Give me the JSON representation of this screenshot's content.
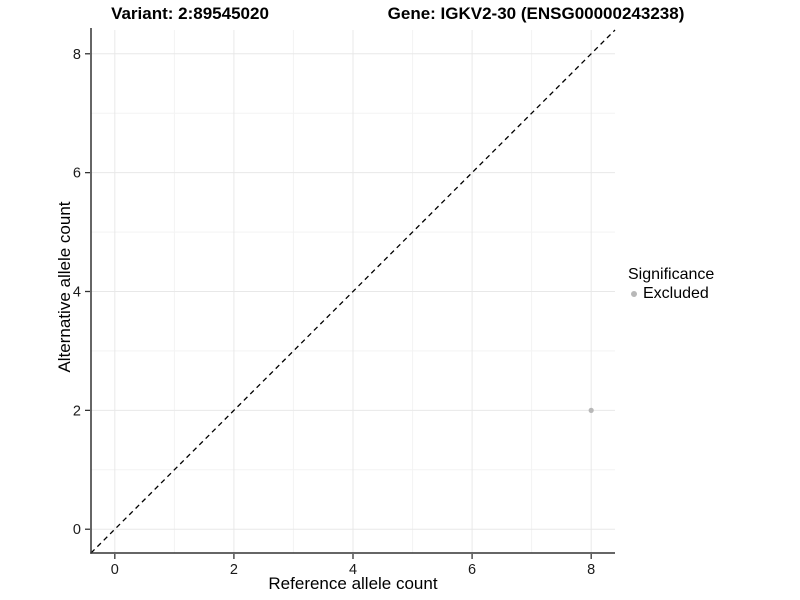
{
  "titles": {
    "variant": "Variant: 2:89545020",
    "gene": "Gene: IGKV2-30 (ENSG00000243238)"
  },
  "axes": {
    "x_label": "Reference allele count",
    "y_label": "Alternative allele count"
  },
  "legend": {
    "title": "Significance",
    "items": [
      {
        "label": "Excluded",
        "color": "#b8b8b8",
        "marker": "circle"
      }
    ]
  },
  "chart_data": {
    "type": "scatter",
    "title": "Variant: 2:89545020   Gene: IGKV2-30 (ENSG00000243238)",
    "xlabel": "Reference allele count",
    "ylabel": "Alternative allele count",
    "xlim": [
      -0.4,
      8.4
    ],
    "ylim": [
      -0.4,
      8.4
    ],
    "x_ticks": [
      0,
      2,
      4,
      6,
      8
    ],
    "y_ticks": [
      0,
      2,
      4,
      6,
      8
    ],
    "x_minor_ticks": [
      1,
      3,
      5,
      7
    ],
    "y_minor_ticks": [
      1,
      3,
      5,
      7
    ],
    "grid": true,
    "legend_position": "right",
    "series": [
      {
        "name": "Excluded",
        "color": "#b8b8b8",
        "points": [
          {
            "x": 8,
            "y": 2
          }
        ]
      }
    ],
    "reference_line": {
      "type": "identity-diagonal",
      "equation": "y = x",
      "style": "dashed",
      "color": "#000000"
    },
    "colors": {
      "major_grid": "#e8e8e8",
      "minor_grid": "#f3f3f3",
      "axis_line": "#333333",
      "tick_label": "#1a1a1a",
      "background": "#ffffff"
    }
  }
}
